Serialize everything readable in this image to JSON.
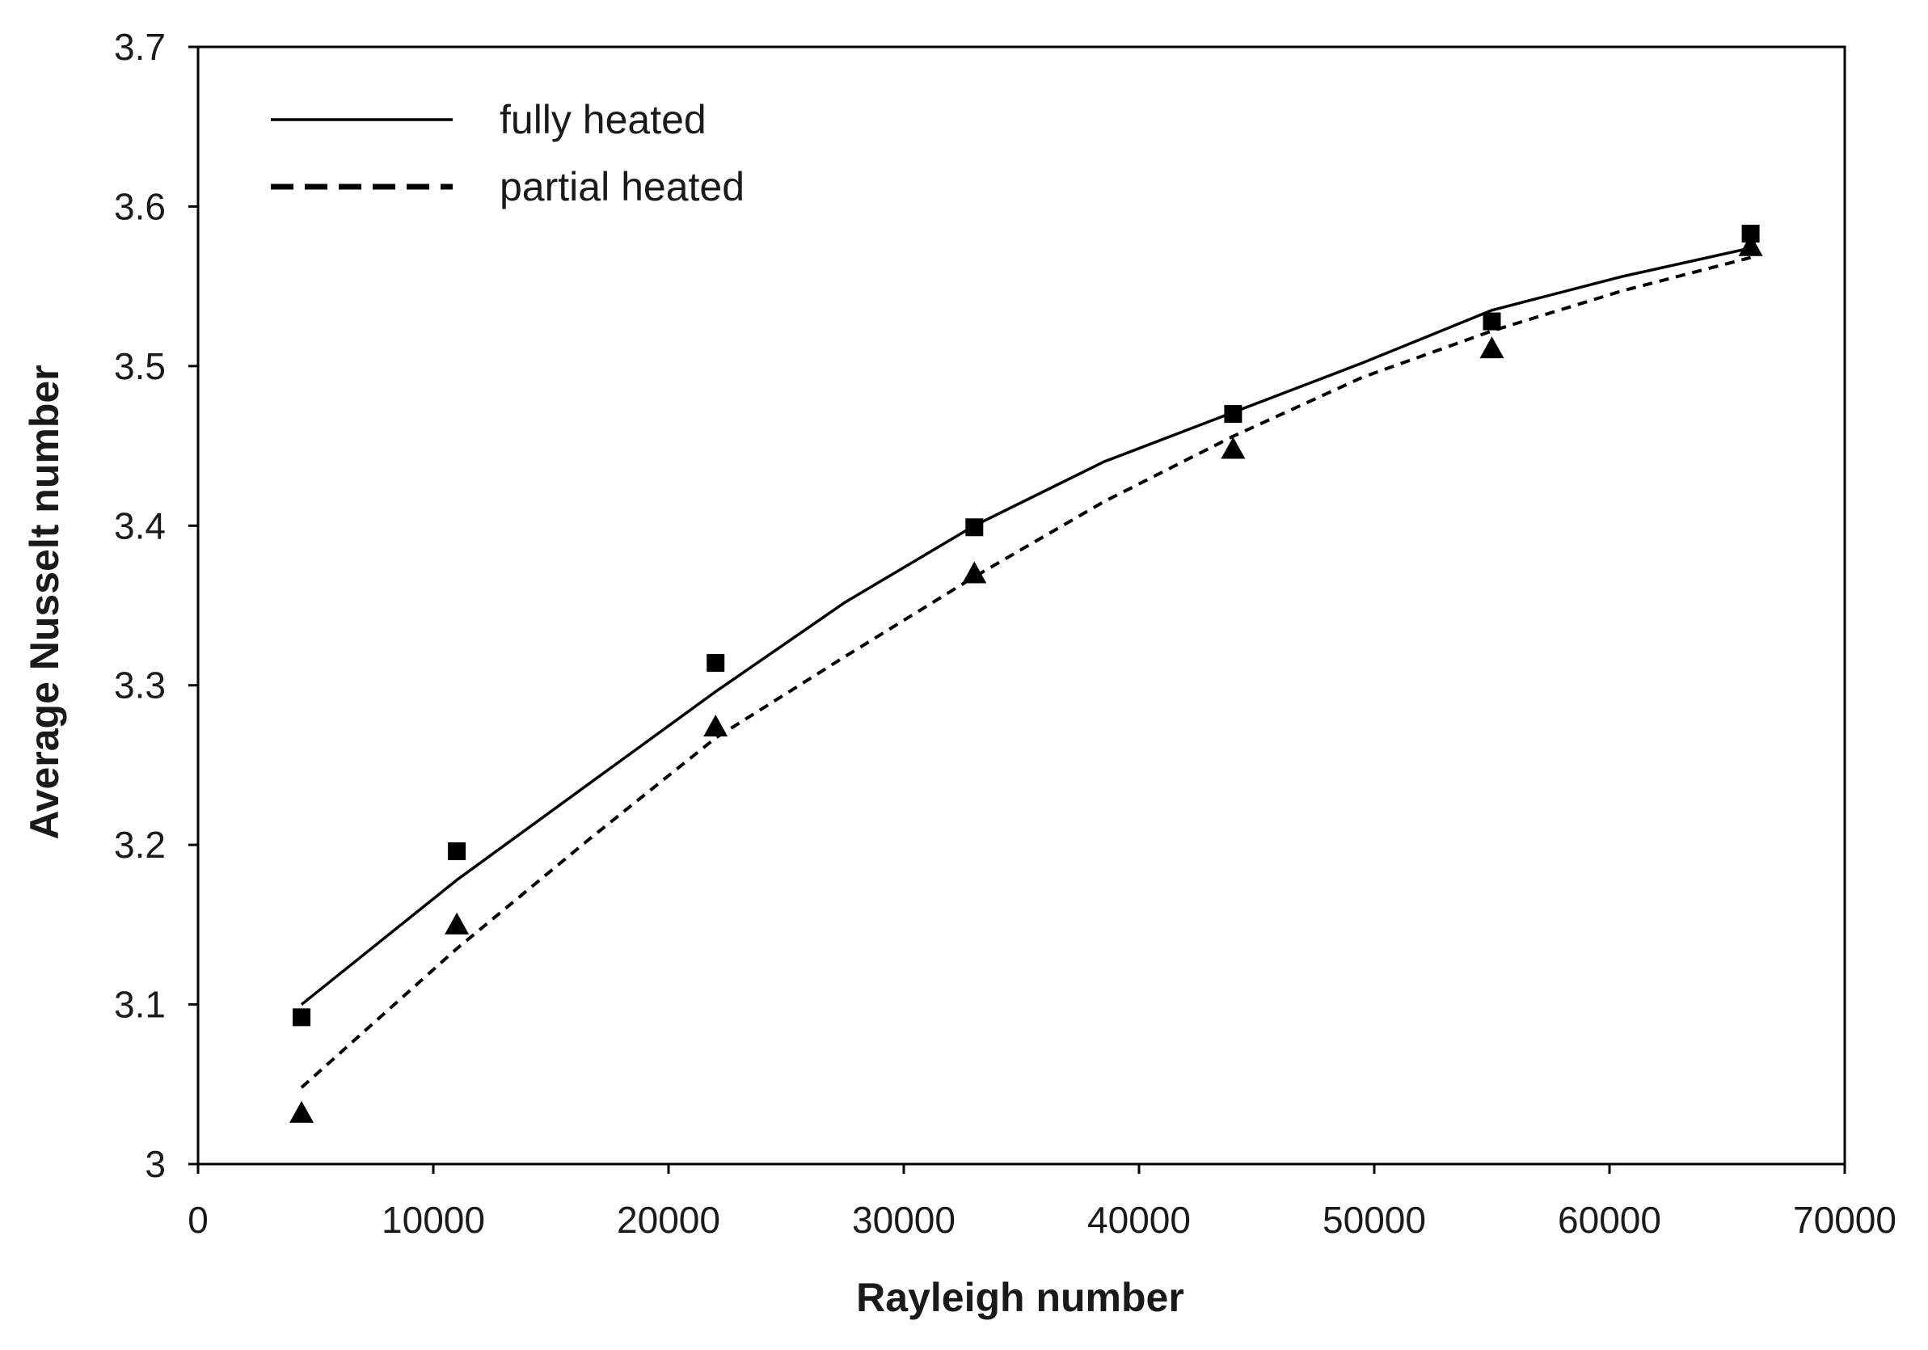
{
  "chart_data": {
    "type": "line",
    "xlabel": "Rayleigh number",
    "ylabel": "Average Nusselt number",
    "xlim": [
      0,
      70000
    ],
    "ylim": [
      3.0,
      3.7
    ],
    "x_ticks": [
      "0",
      "10000",
      "20000",
      "30000",
      "40000",
      "50000",
      "60000",
      "70000"
    ],
    "y_ticks": [
      "3",
      "3.1",
      "3.2",
      "3.3",
      "3.4",
      "3.5",
      "3.6",
      "3.7"
    ],
    "grid": false,
    "legend_position": "top-left",
    "series": [
      {
        "name": "fully heated",
        "line_style": "solid",
        "marker": "square",
        "color": "#000000",
        "points": {
          "x": [
            4400,
            11000,
            22000,
            33000,
            44000,
            55000,
            66000
          ],
          "y": [
            3.092,
            3.196,
            3.314,
            3.399,
            3.47,
            3.528,
            3.583
          ]
        },
        "fit": {
          "x": [
            4400,
            11000,
            16500,
            22000,
            27500,
            33000,
            38500,
            44000,
            49500,
            55000,
            60500,
            66000
          ],
          "y": [
            3.1,
            3.178,
            3.237,
            3.296,
            3.352,
            3.4,
            3.44,
            3.471,
            3.502,
            3.535,
            3.556,
            3.574
          ]
        }
      },
      {
        "name": "partial heated",
        "line_style": "dashed",
        "marker": "triangle",
        "color": "#000000",
        "points": {
          "x": [
            4400,
            11000,
            22000,
            33000,
            44000,
            55000,
            66000
          ],
          "y": [
            3.032,
            3.15,
            3.274,
            3.37,
            3.448,
            3.511,
            3.575
          ]
        },
        "fit": {
          "x": [
            4400,
            11000,
            16500,
            22000,
            27500,
            33000,
            38500,
            44000,
            49500,
            55000,
            60500,
            66000
          ],
          "y": [
            3.048,
            3.135,
            3.202,
            3.267,
            3.318,
            3.368,
            3.415,
            3.456,
            3.493,
            3.522,
            3.547,
            3.568
          ]
        }
      }
    ]
  }
}
